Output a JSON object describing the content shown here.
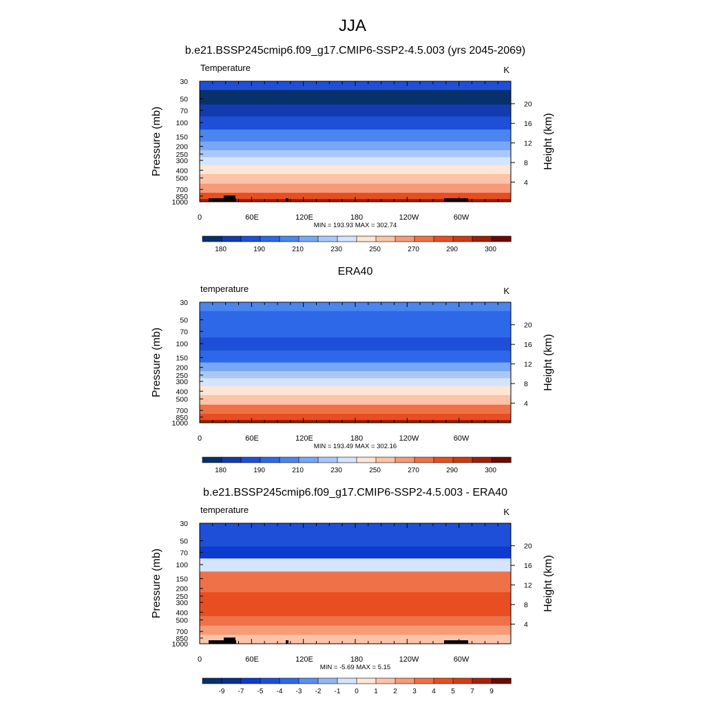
{
  "main_title": "JJA",
  "chart_data": [
    {
      "type": "heatmap",
      "title": "b.e21.BSSP245cmip6.f09_g17.CMIP6-SSP2-4.5.003 (yrs 2045-2069)",
      "left_label": "Temperature",
      "units": "K",
      "ylabel": "Pressure (mb)",
      "y2label": "Height (km)",
      "pressure_ticks": [
        "30",
        "50",
        "70",
        "100",
        "150",
        "200",
        "250",
        "300",
        "400",
        "500",
        "700",
        "850",
        "1000"
      ],
      "height_ticks": [
        "20",
        "16",
        "12",
        "8",
        "4"
      ],
      "x_ticks": [
        "0",
        "60E",
        "120E",
        "180",
        "120W",
        "60W"
      ],
      "stats": "MIN = 193.93  MAX = 302.74",
      "colorbar_labels": [
        "180",
        "190",
        "210",
        "230",
        "250",
        "270",
        "290",
        "300"
      ],
      "colors": [
        "#08306b",
        "#123cae",
        "#1d4fd8",
        "#2d68e8",
        "#4a86f0",
        "#78a7f4",
        "#a9c8f8",
        "#d5e4fb",
        "#fde6d6",
        "#fbc3a7",
        "#f59b77",
        "#ef7147",
        "#e84e22",
        "#cc3a12",
        "#9e1f07",
        "#6b0a02"
      ],
      "bands": [
        {
          "p": "30",
          "c": 2
        },
        {
          "p": "50",
          "c": 0
        },
        {
          "p": "70",
          "c": 1
        },
        {
          "p": "100",
          "c": 2
        },
        {
          "p": "150",
          "c": 4
        },
        {
          "p": "200",
          "c": 5
        },
        {
          "p": "250",
          "c": 6
        },
        {
          "p": "300",
          "c": 7
        },
        {
          "p": "400",
          "c": 8
        },
        {
          "p": "500",
          "c": 9
        },
        {
          "p": "700",
          "c": 10
        },
        {
          "p": "850",
          "c": 12
        },
        {
          "p": "1000",
          "c": 13
        }
      ],
      "topography": true
    },
    {
      "type": "heatmap",
      "title": "ERA40",
      "left_label": "temperature",
      "units": "K",
      "ylabel": "Pressure (mb)",
      "y2label": "Height (km)",
      "pressure_ticks": [
        "30",
        "50",
        "70",
        "100",
        "150",
        "200",
        "250",
        "300",
        "400",
        "500",
        "700",
        "850",
        "1000"
      ],
      "height_ticks": [
        "20",
        "16",
        "12",
        "8",
        "4"
      ],
      "x_ticks": [
        "0",
        "60E",
        "120E",
        "180",
        "120W",
        "60W"
      ],
      "stats": "MIN = 193.49  MAX = 302.16",
      "colorbar_labels": [
        "180",
        "190",
        "210",
        "230",
        "250",
        "270",
        "290",
        "300"
      ],
      "colors": [
        "#08306b",
        "#123cae",
        "#1d4fd8",
        "#2d68e8",
        "#4a86f0",
        "#78a7f4",
        "#a9c8f8",
        "#d5e4fb",
        "#fde6d6",
        "#fbc3a7",
        "#f59b77",
        "#ef7147",
        "#e84e22",
        "#cc3a12",
        "#9e1f07",
        "#6b0a02"
      ],
      "bands": [
        {
          "p": "30",
          "c": 4
        },
        {
          "p": "50",
          "c": 3
        },
        {
          "p": "70",
          "c": 3
        },
        {
          "p": "100",
          "c": 2
        },
        {
          "p": "150",
          "c": 3
        },
        {
          "p": "200",
          "c": 5
        },
        {
          "p": "250",
          "c": 6
        },
        {
          "p": "300",
          "c": 7
        },
        {
          "p": "400",
          "c": 8
        },
        {
          "p": "500",
          "c": 9
        },
        {
          "p": "700",
          "c": 11
        },
        {
          "p": "850",
          "c": 12
        },
        {
          "p": "1000",
          "c": 13
        }
      ],
      "topography": false
    },
    {
      "type": "heatmap",
      "title": "b.e21.BSSP245cmip6.f09_g17.CMIP6-SSP2-4.5.003 - ERA40",
      "left_label": "temperature",
      "units": "K",
      "ylabel": "Pressure (mb)",
      "y2label": "Height (km)",
      "pressure_ticks": [
        "30",
        "50",
        "70",
        "100",
        "150",
        "200",
        "250",
        "300",
        "400",
        "500",
        "700",
        "850",
        "1000"
      ],
      "height_ticks": [
        "20",
        "16",
        "12",
        "8",
        "4"
      ],
      "x_ticks": [
        "0",
        "60E",
        "120E",
        "180",
        "120W",
        "60W"
      ],
      "stats": "MIN = -5.69  MAX =   5.15",
      "colorbar_labels": [
        "-9",
        "-7",
        "-5",
        "-4",
        "-3",
        "-2",
        "-1",
        "0",
        "1",
        "2",
        "3",
        "4",
        "5",
        "7",
        "9"
      ],
      "colors": [
        "#08306b",
        "#0a2f8f",
        "#0b3ccf",
        "#1d4fd8",
        "#2d68e8",
        "#5a8ff0",
        "#94b8f6",
        "#d5e4fb",
        "#fde6d6",
        "#fbc3a7",
        "#f59b77",
        "#ef7147",
        "#e84e22",
        "#d43d10",
        "#a5220a",
        "#6b0a02"
      ],
      "bands": [
        {
          "p": "30",
          "c": 3
        },
        {
          "p": "50",
          "c": 3
        },
        {
          "p": "70",
          "c": 2
        },
        {
          "p": "100",
          "c": 7
        },
        {
          "p": "150",
          "c": 11
        },
        {
          "p": "200",
          "c": 11
        },
        {
          "p": "250",
          "c": 12
        },
        {
          "p": "300",
          "c": 12
        },
        {
          "p": "400",
          "c": 12
        },
        {
          "p": "500",
          "c": 11
        },
        {
          "p": "700",
          "c": 10
        },
        {
          "p": "850",
          "c": 9
        },
        {
          "p": "1000",
          "c": 8
        }
      ],
      "topography": true
    }
  ]
}
